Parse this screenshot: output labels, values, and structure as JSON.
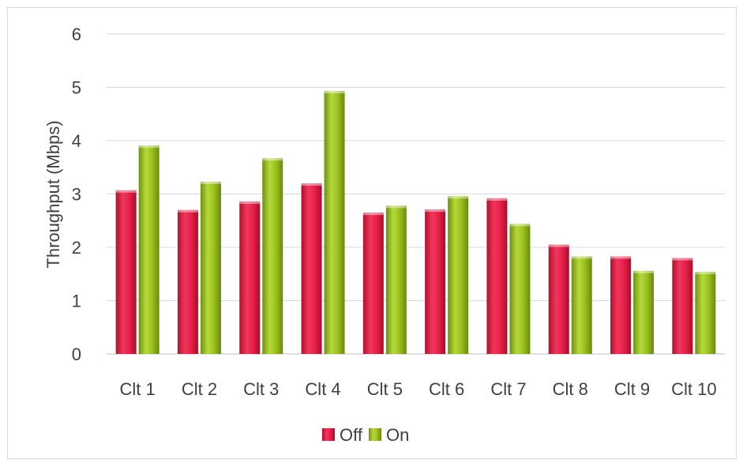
{
  "chart_data": {
    "type": "bar",
    "title": "",
    "xlabel": "",
    "ylabel": "Throughput (Mbps)",
    "ylim": [
      0,
      6
    ],
    "yticks": [
      "0",
      "1",
      "2",
      "3",
      "4",
      "5",
      "6"
    ],
    "grid": true,
    "legend_position": "bottom",
    "categories": [
      "Clt 1",
      "Clt 2",
      "Clt 3",
      "Clt 4",
      "Clt 5",
      "Clt 6",
      "Clt 7",
      "Clt 8",
      "Clt 9",
      "Clt 10"
    ],
    "series": [
      {
        "name": "Off",
        "color": "#e8214a",
        "values": [
          3.07,
          2.7,
          2.86,
          3.2,
          2.65,
          2.71,
          2.92,
          2.05,
          1.83,
          1.8
        ]
      },
      {
        "name": "On",
        "color": "#9cc21f",
        "values": [
          3.91,
          3.23,
          3.67,
          4.93,
          2.78,
          2.96,
          2.44,
          1.83,
          1.56,
          1.54
        ]
      }
    ]
  }
}
